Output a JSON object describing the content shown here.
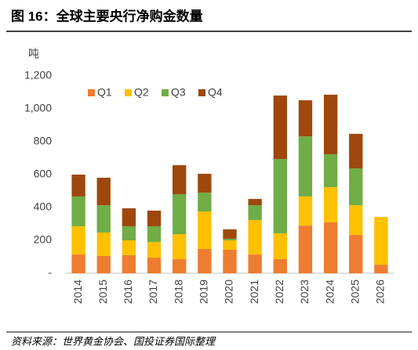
{
  "chart_data": {
    "type": "stacked_bar",
    "title": "图 16：全球主要央行净购金数量",
    "y_label": "吨",
    "source": "资料来源：世界黄金协会、国投证券国际整理",
    "categories": [
      "2014",
      "2015",
      "2016",
      "2017",
      "2018",
      "2019",
      "2020",
      "2021",
      "2022",
      "2023",
      "2024",
      "2025",
      "2026"
    ],
    "series": [
      {
        "name": "Q1",
        "color": "#ed7d31",
        "values": [
          114,
          105,
          110,
          95,
          86,
          148,
          143,
          114,
          86,
          290,
          310,
          233,
          52
        ]
      },
      {
        "name": "Q2",
        "color": "#ffc000",
        "values": [
          172,
          143,
          90,
          95,
          152,
          228,
          57,
          210,
          157,
          177,
          214,
          181,
          291
        ]
      },
      {
        "name": "Q3",
        "color": "#70ad47",
        "values": [
          181,
          166,
          86,
          96,
          243,
          114,
          10,
          90,
          452,
          366,
          200,
          224,
          null
        ]
      },
      {
        "name": "Q4",
        "color": "#9e480e",
        "values": [
          133,
          167,
          109,
          95,
          176,
          115,
          57,
          38,
          386,
          219,
          362,
          210,
          null
        ]
      }
    ],
    "ylim": [
      0,
      1200
    ],
    "yticks": [
      {
        "value": 0,
        "label": "-"
      },
      200,
      400,
      600,
      800,
      {
        "value": 1000,
        "label": "1,000"
      },
      {
        "value": 1200,
        "label": "1,200"
      }
    ],
    "legend": "top-left",
    "grid": false
  }
}
